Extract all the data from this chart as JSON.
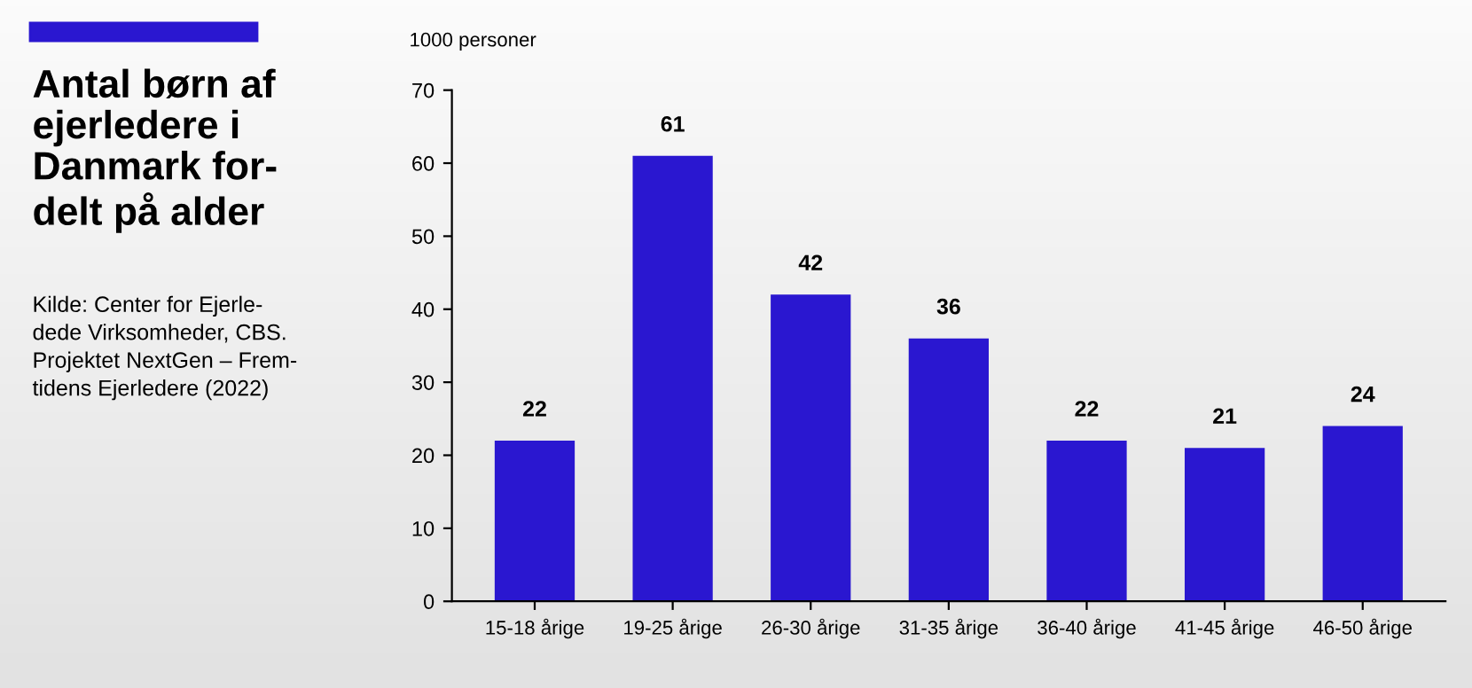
{
  "chart_data": {
    "type": "bar",
    "title": "Antal børn af\nejerledere i\nDanmark for-\ndelt på alder",
    "ylabel": "1000 personer",
    "annotations": [
      "Kilde: Center for Ejerle-\ndede Virksomheder, CBS.\nProjektet NextGen – Frem-\ntidens Ejerledere (2022)"
    ],
    "categories": [
      "15-18 årige",
      "19-25 årige",
      "26-30 årige",
      "31-35 årige",
      "36-40 årige",
      "41-45 årige",
      "46-50 årige"
    ],
    "values": [
      22,
      61,
      42,
      36,
      22,
      21,
      24
    ],
    "color": "#2a17d0",
    "ylim": [
      0,
      70
    ],
    "yticks": [
      0,
      10,
      20,
      30,
      40,
      50,
      60,
      70
    ],
    "data_labels": true,
    "grid": false,
    "legend": false
  }
}
